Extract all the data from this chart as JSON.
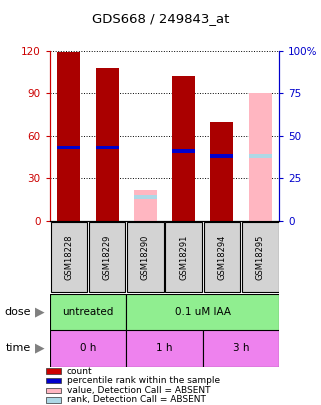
{
  "title": "GDS668 / 249843_at",
  "samples": [
    "GSM18228",
    "GSM18229",
    "GSM18290",
    "GSM18291",
    "GSM18294",
    "GSM18295"
  ],
  "bar_values": [
    119,
    108,
    0,
    102,
    70,
    0
  ],
  "bar_values_absent": [
    0,
    0,
    22,
    0,
    0,
    90
  ],
  "percentile_present": [
    43,
    43,
    0,
    41,
    38,
    0
  ],
  "percentile_absent": [
    0,
    0,
    14,
    0,
    0,
    38
  ],
  "absent_flags": [
    false,
    false,
    true,
    false,
    false,
    true
  ],
  "ylim_left": [
    0,
    120
  ],
  "ylim_right": [
    0,
    100
  ],
  "yticks_left": [
    0,
    30,
    60,
    90,
    120
  ],
  "yticks_right": [
    0,
    25,
    50,
    75,
    100
  ],
  "ytick_labels_left": [
    "0",
    "30",
    "60",
    "90",
    "120"
  ],
  "ytick_labels_right": [
    "0",
    "25",
    "50",
    "75",
    "100%"
  ],
  "dose_groups": [
    {
      "label": "untreated",
      "color": "#90ee90",
      "span": [
        0,
        2
      ]
    },
    {
      "label": "0.1 uM IAA",
      "color": "#90ee90",
      "span": [
        2,
        6
      ]
    }
  ],
  "time_groups": [
    {
      "label": "0 h",
      "color": "#ee82ee",
      "span": [
        0,
        2
      ]
    },
    {
      "label": "1 h",
      "color": "#ee82ee",
      "span": [
        2,
        4
      ]
    },
    {
      "label": "3 h",
      "color": "#ee82ee",
      "span": [
        4,
        6
      ]
    }
  ],
  "legend_items": [
    {
      "color": "#cc0000",
      "label": "count"
    },
    {
      "color": "#0000cc",
      "label": "percentile rank within the sample"
    },
    {
      "color": "#ffb6c1",
      "label": "value, Detection Call = ABSENT"
    },
    {
      "color": "#add8e6",
      "label": "rank, Detection Call = ABSENT"
    }
  ],
  "bar_width": 0.6,
  "dose_label": "dose",
  "time_label": "time",
  "left_axis_color": "#cc0000",
  "right_axis_color": "#0000cc",
  "bar_color_present": "#aa0000",
  "bar_color_absent_value": "#ffb6c1",
  "bar_color_absent_rank": "#add8e6",
  "bar_color_pct_present": "#0000cc",
  "sample_box_color": "#d3d3d3"
}
